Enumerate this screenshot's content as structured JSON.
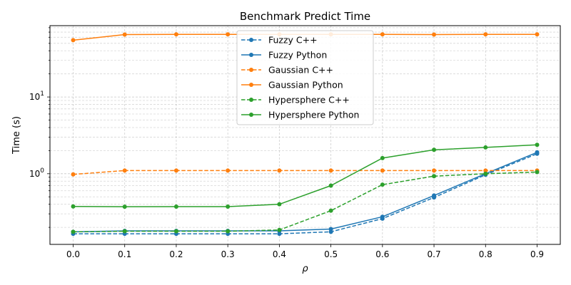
{
  "chart_data": {
    "type": "line",
    "title": "Benchmark Predict Time",
    "xlabel": "ρ",
    "ylabel": "Time (s)",
    "yscale": "log",
    "xlim": [
      -0.045,
      0.945
    ],
    "ylim": [
      0.12,
      85
    ],
    "grid": true,
    "legend_loc": "top-center",
    "x": [
      0.0,
      0.1,
      0.2,
      0.3,
      0.4,
      0.5,
      0.6,
      0.7,
      0.8,
      0.9
    ],
    "x_ticks": [
      "0.0",
      "0.1",
      "0.2",
      "0.3",
      "0.4",
      "0.5",
      "0.6",
      "0.7",
      "0.8",
      "0.9"
    ],
    "y_ticks": [
      {
        "value": 1,
        "base": "10",
        "exp": "0"
      },
      {
        "value": 10,
        "base": "10",
        "exp": "1"
      }
    ],
    "series": [
      {
        "name": "Fuzzy C++",
        "color": "#1f77b4",
        "dash": true,
        "values": [
          0.165,
          0.165,
          0.165,
          0.165,
          0.165,
          0.175,
          0.26,
          0.49,
          0.97,
          1.82
        ]
      },
      {
        "name": "Fuzzy Python",
        "color": "#1f77b4",
        "dash": false,
        "values": [
          0.175,
          0.18,
          0.18,
          0.18,
          0.18,
          0.19,
          0.275,
          0.52,
          1.0,
          1.9
        ]
      },
      {
        "name": "Gaussian C++",
        "color": "#ff7f0e",
        "dash": true,
        "values": [
          0.98,
          1.1,
          1.1,
          1.1,
          1.1,
          1.1,
          1.1,
          1.1,
          1.1,
          1.1
        ]
      },
      {
        "name": "Gaussian Python",
        "color": "#ff7f0e",
        "dash": false,
        "values": [
          55,
          65,
          65.5,
          65.5,
          65.5,
          65.5,
          65.5,
          65,
          65.5,
          65.5
        ]
      },
      {
        "name": "Hypersphere C++",
        "color": "#2ca02c",
        "dash": true,
        "values": [
          0.175,
          0.178,
          0.178,
          0.178,
          0.185,
          0.33,
          0.72,
          0.93,
          1.0,
          1.05
        ]
      },
      {
        "name": "Hypersphere Python",
        "color": "#2ca02c",
        "dash": false,
        "values": [
          0.375,
          0.372,
          0.373,
          0.373,
          0.4,
          0.7,
          1.6,
          2.05,
          2.2,
          2.38
        ]
      }
    ]
  }
}
